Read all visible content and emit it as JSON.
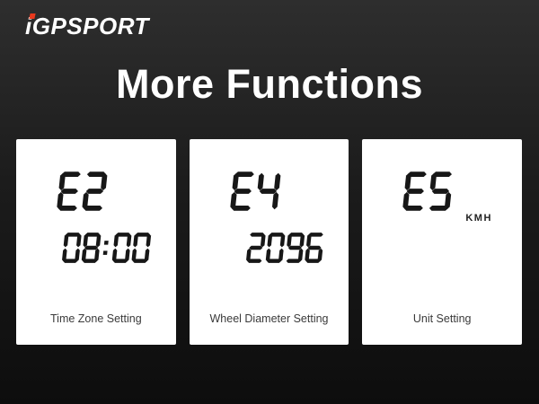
{
  "header": {
    "logo": {
      "i": "i",
      "rest": "GPSPORT"
    },
    "title": "More Functions"
  },
  "cards": [
    {
      "code": "E2",
      "value": "08:00",
      "unit": "",
      "caption": "Time Zone Setting"
    },
    {
      "code": "E4",
      "value": "2096",
      "unit": "",
      "caption": "Wheel Diameter Setting"
    },
    {
      "code": "E5",
      "value": "",
      "unit": "KMH",
      "caption": "Unit Setting"
    }
  ],
  "colors": {
    "background_top": "#2e2e2e",
    "background_bottom": "#0d0d0d",
    "card_background": "#ffffff",
    "lcd_digits": "#171717",
    "caption_text": "#3a3a3a",
    "title_text": "#ffffff",
    "brand_accent_red": "#e8391d"
  }
}
